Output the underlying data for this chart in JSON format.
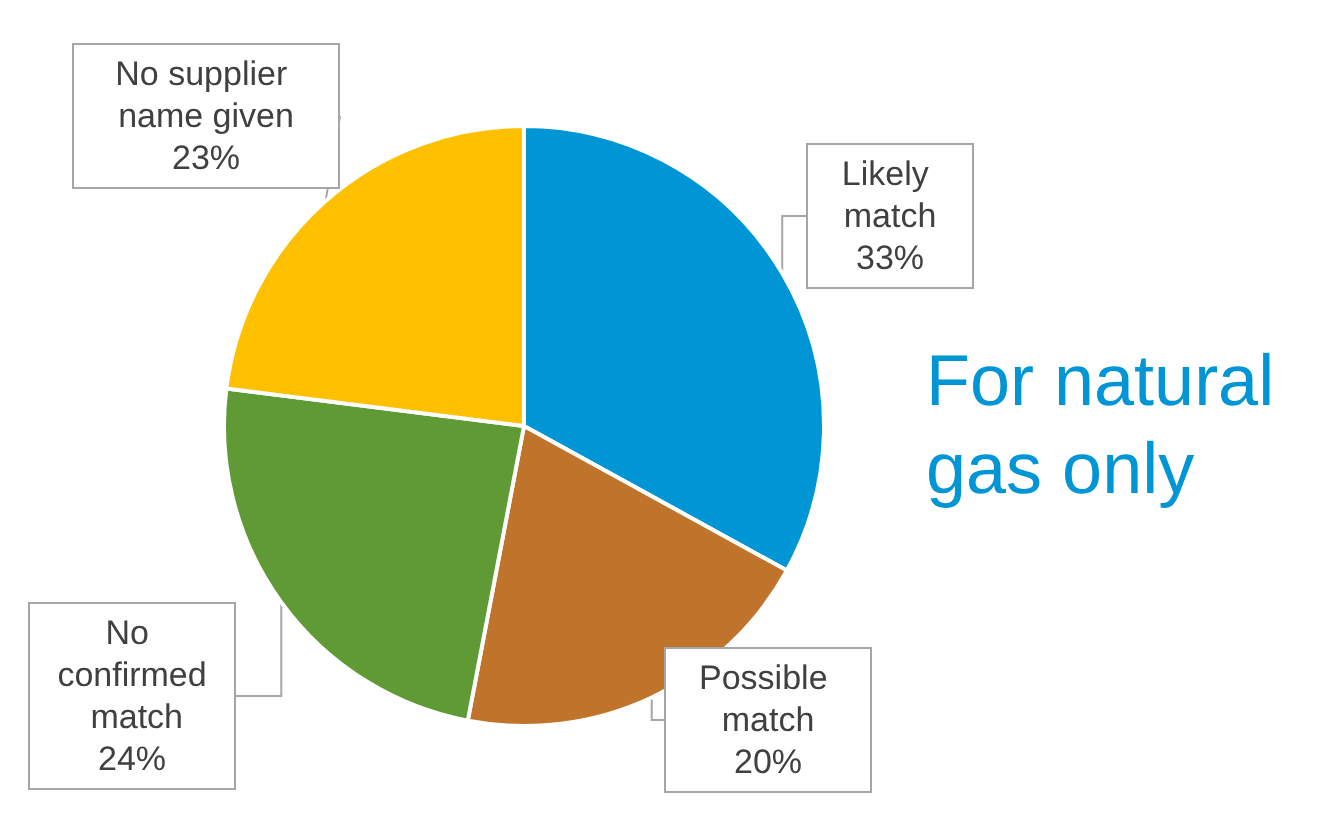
{
  "chart_data": {
    "type": "pie",
    "categories": [
      "Likely match",
      "Possible match",
      "No confirmed match",
      "No supplier name given"
    ],
    "values": [
      33,
      20,
      24,
      23
    ],
    "colors": [
      "#0096d6",
      "#c0732a",
      "#5f9a35",
      "#ffc000"
    ],
    "value_labels": [
      "33%",
      "20%",
      "24%",
      "23%"
    ],
    "annotations": [
      "For natural gas only"
    ]
  }
}
